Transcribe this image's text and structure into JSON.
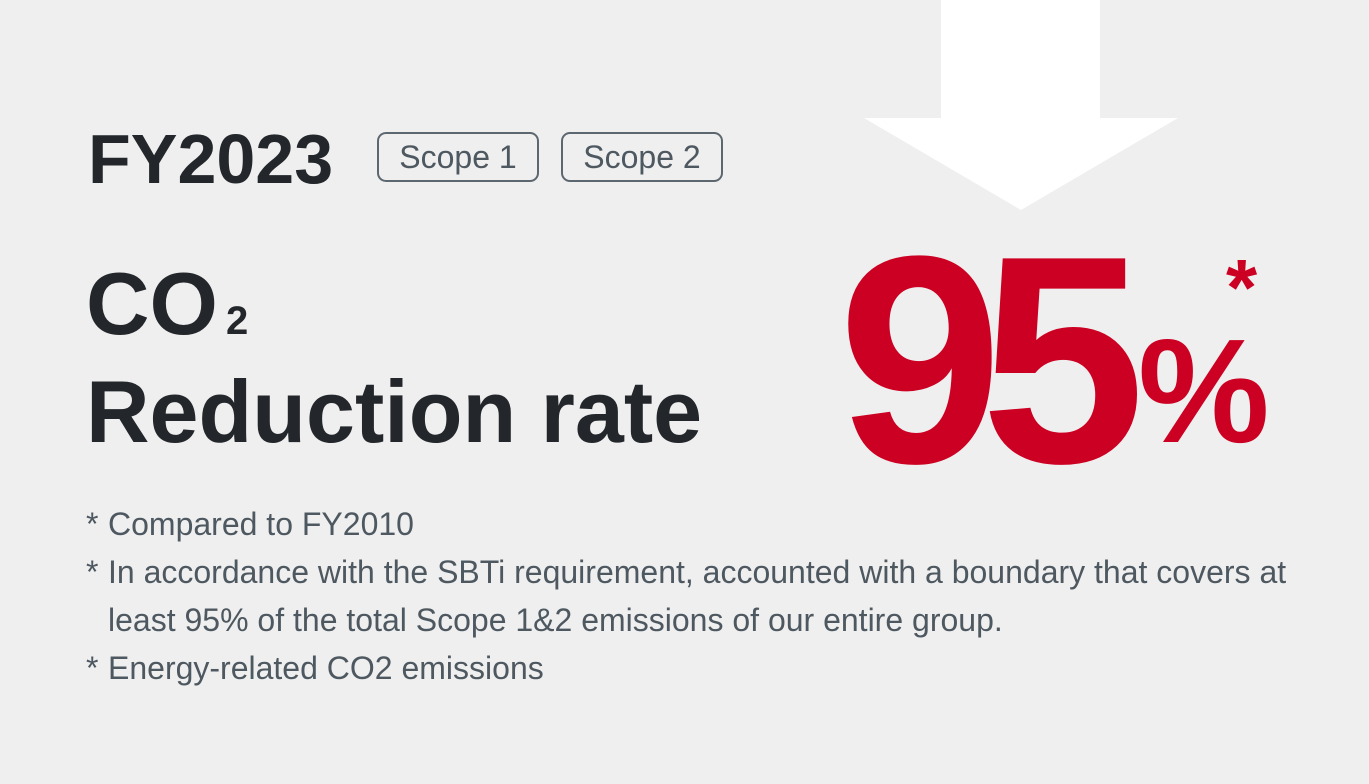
{
  "header": {
    "fiscal_year": "FY2023",
    "scopes": [
      "Scope 1",
      "Scope 2"
    ]
  },
  "headline": {
    "co2_main": "CO",
    "co2_subscript": "2",
    "label": "Reduction rate",
    "value": "95",
    "unit": "%",
    "asterisk": "*"
  },
  "notes": [
    {
      "mark": "*",
      "text": "Compared to FY2010"
    },
    {
      "mark": "*",
      "text": "In accordance with the SBTi requirement, accounted with a boundary that covers at least 95% of the total Scope 1&2 emissions of our entire group."
    },
    {
      "mark": "*",
      "text": "Energy-related CO2 emissions"
    }
  ],
  "colors": {
    "background": "#efefef",
    "accent_red": "#cc0022",
    "dark_text": "#23272b",
    "gray_text": "#4e5860",
    "arrow": "#ffffff"
  },
  "icons": {
    "arrow": "down-arrow-icon"
  }
}
